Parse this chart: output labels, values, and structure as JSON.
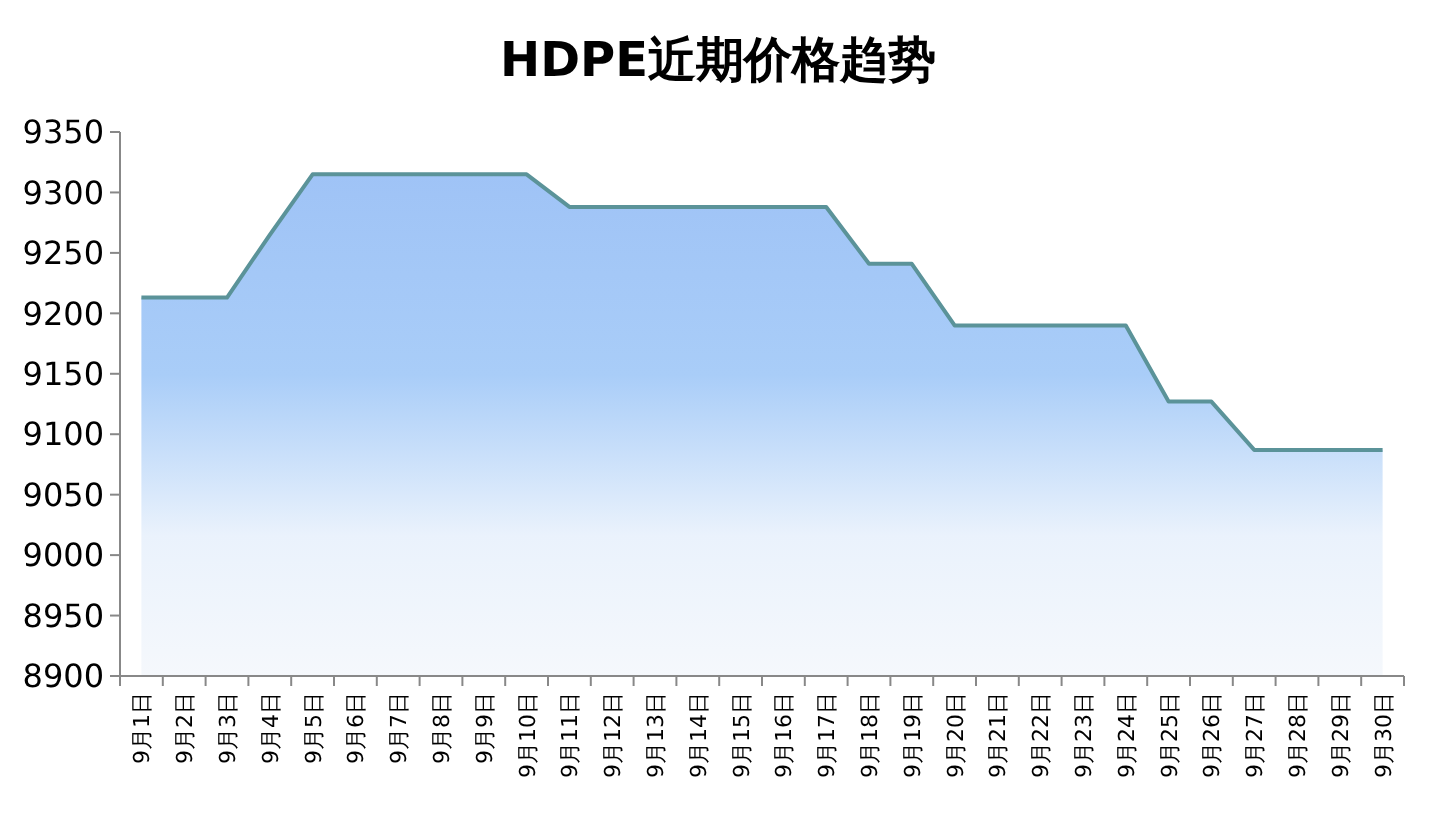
{
  "chart_data": {
    "type": "area",
    "title": "HDPE近期价格趋势",
    "categories": [
      "9月1日",
      "9月2日",
      "9月3日",
      "9月4日",
      "9月5日",
      "9月6日",
      "9月7日",
      "9月8日",
      "9月9日",
      "9月10日",
      "9月11日",
      "9月12日",
      "9月13日",
      "9月14日",
      "9月15日",
      "9月16日",
      "9月17日",
      "9月18日",
      "9月19日",
      "9月20日",
      "9月21日",
      "9月22日",
      "9月23日",
      "9月24日",
      "9月25日",
      "9月26日",
      "9月27日",
      "9月28日",
      "9月29日",
      "9月30日"
    ],
    "series": [
      {
        "color": "#5b9399",
        "values": [
          9213,
          9213,
          9213,
          9265,
          9315,
          9315,
          9315,
          9315,
          9315,
          9315,
          9288,
          9288,
          9288,
          9288,
          9288,
          9288,
          9288,
          9241,
          9241,
          9190,
          9190,
          9190,
          9190,
          9190,
          9127,
          9127,
          9087,
          9087,
          9087,
          9087
        ]
      }
    ],
    "ylim": [
      8900,
      9350
    ],
    "yticks": [
      8900,
      8950,
      9000,
      9050,
      9100,
      9150,
      9200,
      9250,
      9300,
      9350
    ],
    "grid": false
  }
}
